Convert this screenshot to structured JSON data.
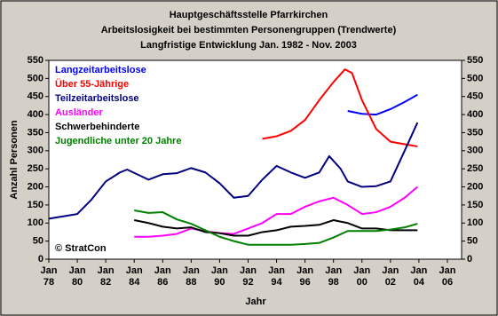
{
  "chart_data": {
    "type": "line",
    "title": "Hauptgeschäftsstelle Pfarrkirchen",
    "subtitle": "Arbeitslosigkeit bei bestimmten Personengruppen (Trendwerte)",
    "subtitle2": "Langfristige Entwicklung Jan. 1982 - Nov. 2003",
    "xlabel": "Jahr",
    "ylabel": "Anzahl Personen",
    "annotation": "© StratCon",
    "xlim": [
      1978,
      2007
    ],
    "xticks": [
      {
        "value": 1978,
        "label": "Jan 78"
      },
      {
        "value": 1980,
        "label": "Jan 80"
      },
      {
        "value": 1982,
        "label": "Jan 82"
      },
      {
        "value": 1984,
        "label": "Jan 84"
      },
      {
        "value": 1986,
        "label": "Jan 86"
      },
      {
        "value": 1988,
        "label": "Jan 88"
      },
      {
        "value": 1990,
        "label": "Jan 90"
      },
      {
        "value": 1992,
        "label": "Jan 92"
      },
      {
        "value": 1994,
        "label": "Jan 94"
      },
      {
        "value": 1996,
        "label": "Jan 96"
      },
      {
        "value": 1998,
        "label": "Jan 98"
      },
      {
        "value": 2000,
        "label": "Jan 00"
      },
      {
        "value": 2002,
        "label": "Jan 02"
      },
      {
        "value": 2004,
        "label": "Jan 04"
      },
      {
        "value": 2006,
        "label": "Jan 06"
      }
    ],
    "ylim": [
      0,
      550
    ],
    "yticks": [
      0,
      50,
      100,
      150,
      200,
      250,
      300,
      350,
      400,
      450,
      500,
      550
    ],
    "y2lim": [
      0,
      550
    ],
    "y2ticks": [
      0,
      50,
      100,
      150,
      200,
      250,
      300,
      350,
      400,
      450,
      500,
      550
    ],
    "grid": false,
    "series": [
      {
        "name": "Langzeitarbeitslose",
        "color": "#0000ff",
        "x": [
          1999,
          2000,
          2001,
          2002,
          2003,
          2003.9
        ],
        "values": [
          410,
          402,
          400,
          415,
          435,
          455
        ]
      },
      {
        "name": "Über 55-Jährige",
        "color": "#ff0000",
        "x": [
          1993,
          1994,
          1995,
          1996,
          1997,
          1998,
          1998.8,
          1999.3,
          2000,
          2001,
          2002,
          2003,
          2003.9
        ],
        "values": [
          333,
          340,
          355,
          385,
          440,
          490,
          525,
          515,
          440,
          360,
          325,
          318,
          312
        ]
      },
      {
        "name": "Teilzeitarbeitslose",
        "color": "#000080",
        "x": [
          1978,
          1980,
          1981,
          1982,
          1983,
          1983.5,
          1985,
          1986,
          1987,
          1988,
          1989,
          1990,
          1991,
          1992,
          1993,
          1994,
          1995,
          1996,
          1997,
          1997.7,
          1998.5,
          1999,
          2000,
          2001,
          2002,
          2003,
          2003.9
        ],
        "values": [
          112,
          125,
          165,
          215,
          240,
          248,
          220,
          235,
          238,
          252,
          240,
          210,
          170,
          175,
          220,
          258,
          240,
          225,
          240,
          285,
          250,
          215,
          200,
          202,
          215,
          300,
          378
        ]
      },
      {
        "name": "Ausländer",
        "color": "#ff00ff",
        "x": [
          1984,
          1985,
          1986,
          1987,
          1988,
          1989,
          1990,
          1991,
          1992,
          1993,
          1994,
          1995,
          1996,
          1997,
          1998,
          1999,
          2000,
          2001,
          2002,
          2003,
          2003.9
        ],
        "values": [
          62,
          62,
          65,
          70,
          85,
          78,
          72,
          70,
          85,
          100,
          125,
          125,
          145,
          160,
          170,
          150,
          125,
          130,
          145,
          170,
          200
        ]
      },
      {
        "name": "Schwerbehinderte",
        "color": "#000000",
        "x": [
          1984,
          1985,
          1986,
          1987,
          1988,
          1989,
          1990,
          1991,
          1992,
          1993,
          1994,
          1995,
          1996,
          1997,
          1998,
          1999,
          2000,
          2001,
          2002,
          2003,
          2003.9
        ],
        "values": [
          108,
          100,
          90,
          85,
          88,
          75,
          72,
          65,
          65,
          75,
          80,
          90,
          92,
          95,
          108,
          100,
          85,
          85,
          80,
          80,
          80
        ]
      },
      {
        "name": "Jugendliche unter 20 Jahre",
        "color": "#008000",
        "x": [
          1984,
          1985,
          1986,
          1987,
          1988,
          1989,
          1990,
          1991,
          1992,
          1993,
          1994,
          1995,
          1996,
          1997,
          1998,
          1999,
          2000,
          2001,
          2002,
          2003,
          2003.9
        ],
        "values": [
          135,
          128,
          130,
          110,
          98,
          80,
          62,
          50,
          40,
          40,
          40,
          40,
          42,
          45,
          60,
          78,
          78,
          78,
          82,
          88,
          98
        ]
      }
    ]
  }
}
